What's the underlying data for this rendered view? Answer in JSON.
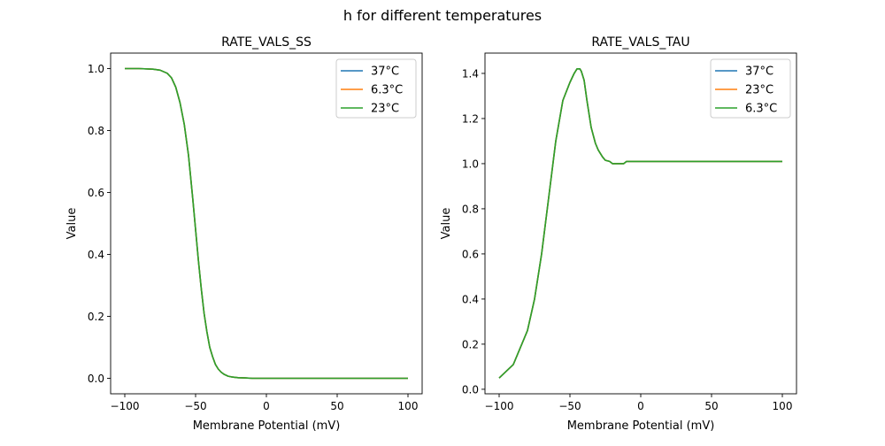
{
  "chart_data": {
    "suptitle": "h for different temperatures",
    "subplots": [
      {
        "type": "line",
        "title": "RATE_VALS_SS",
        "xlabel": "Membrane Potential (mV)",
        "ylabel": "Value",
        "xlim": [
          -110,
          110
        ],
        "ylim": [
          -0.05,
          1.05
        ],
        "xticks": [
          -100,
          -50,
          0,
          50,
          100
        ],
        "xticklabels": [
          "−100",
          "−50",
          "0",
          "50",
          "100"
        ],
        "yticks": [
          0.0,
          0.2,
          0.4,
          0.6,
          0.8,
          1.0
        ],
        "yticklabels": [
          "0.0",
          "0.2",
          "0.4",
          "0.6",
          "0.8",
          "1.0"
        ],
        "legend": {
          "placement": "top-right",
          "entries": [
            "37°C",
            "6.3°C",
            "23°C"
          ]
        },
        "x": [
          -100,
          -90,
          -80,
          -75,
          -70,
          -67,
          -64,
          -61,
          -58,
          -55,
          -52,
          -50,
          -48,
          -46,
          -44,
          -42,
          -40,
          -38,
          -36,
          -34,
          -32,
          -30,
          -27,
          -24,
          -20,
          -15,
          -10,
          0,
          50,
          100
        ],
        "series": [
          {
            "name": "37°C",
            "color": "#1f77b4",
            "values": [
              1.0,
              1.0,
              0.998,
              0.995,
              0.985,
              0.97,
              0.94,
              0.89,
              0.82,
              0.72,
              0.58,
              0.48,
              0.38,
              0.29,
              0.21,
              0.15,
              0.1,
              0.07,
              0.045,
              0.03,
              0.02,
              0.013,
              0.007,
              0.004,
              0.002,
              0.001,
              0.0,
              0.0,
              0.0,
              0.0
            ]
          },
          {
            "name": "6.3°C",
            "color": "#ff7f0e",
            "values": [
              1.0,
              1.0,
              0.998,
              0.995,
              0.985,
              0.97,
              0.94,
              0.89,
              0.82,
              0.72,
              0.58,
              0.48,
              0.38,
              0.29,
              0.21,
              0.15,
              0.1,
              0.07,
              0.045,
              0.03,
              0.02,
              0.013,
              0.007,
              0.004,
              0.002,
              0.001,
              0.0,
              0.0,
              0.0,
              0.0
            ]
          },
          {
            "name": "23°C",
            "color": "#2ca02c",
            "values": [
              1.0,
              1.0,
              0.998,
              0.995,
              0.985,
              0.97,
              0.94,
              0.89,
              0.82,
              0.72,
              0.58,
              0.48,
              0.38,
              0.29,
              0.21,
              0.15,
              0.1,
              0.07,
              0.045,
              0.03,
              0.02,
              0.013,
              0.007,
              0.004,
              0.002,
              0.001,
              0.0,
              0.0,
              0.0,
              0.0
            ]
          }
        ]
      },
      {
        "type": "line",
        "title": "RATE_VALS_TAU",
        "xlabel": "Membrane Potential (mV)",
        "ylabel": "Value",
        "xlim": [
          -110,
          110
        ],
        "ylim": [
          -0.02,
          1.49
        ],
        "xticks": [
          -100,
          -50,
          0,
          50,
          100
        ],
        "xticklabels": [
          "−100",
          "−50",
          "0",
          "50",
          "100"
        ],
        "yticks": [
          0.0,
          0.2,
          0.4,
          0.6,
          0.8,
          1.0,
          1.2,
          1.4
        ],
        "yticklabels": [
          "0.0",
          "0.2",
          "0.4",
          "0.6",
          "0.8",
          "1.0",
          "1.2",
          "1.4"
        ],
        "legend": {
          "placement": "top-right",
          "entries": [
            "37°C",
            "23°C",
            "6.3°C"
          ]
        },
        "x": [
          -100,
          -90,
          -80,
          -75,
          -70,
          -65,
          -60,
          -55,
          -50,
          -47,
          -45,
          -43,
          -42,
          -40,
          -38,
          -35,
          -32,
          -30,
          -27,
          -25,
          -22,
          -20,
          -17,
          -15,
          -12,
          -10,
          100
        ],
        "series": [
          {
            "name": "37°C",
            "color": "#1f77b4",
            "values": [
              0.05,
              0.11,
              0.26,
              0.4,
              0.6,
              0.85,
              1.1,
              1.28,
              1.36,
              1.4,
              1.42,
              1.42,
              1.41,
              1.37,
              1.28,
              1.16,
              1.09,
              1.06,
              1.03,
              1.015,
              1.01,
              1.0,
              1.0,
              1.0,
              1.0,
              1.01,
              1.01
            ]
          },
          {
            "name": "23°C",
            "color": "#ff7f0e",
            "values": [
              0.05,
              0.11,
              0.26,
              0.4,
              0.6,
              0.85,
              1.1,
              1.28,
              1.36,
              1.4,
              1.42,
              1.42,
              1.41,
              1.37,
              1.28,
              1.16,
              1.09,
              1.06,
              1.03,
              1.015,
              1.01,
              1.0,
              1.0,
              1.0,
              1.0,
              1.01,
              1.01
            ]
          },
          {
            "name": "6.3°C",
            "color": "#2ca02c",
            "values": [
              0.05,
              0.11,
              0.26,
              0.4,
              0.6,
              0.85,
              1.1,
              1.28,
              1.36,
              1.4,
              1.42,
              1.42,
              1.41,
              1.37,
              1.28,
              1.16,
              1.09,
              1.06,
              1.03,
              1.015,
              1.01,
              1.0,
              1.0,
              1.0,
              1.0,
              1.01,
              1.01
            ]
          }
        ]
      }
    ]
  }
}
